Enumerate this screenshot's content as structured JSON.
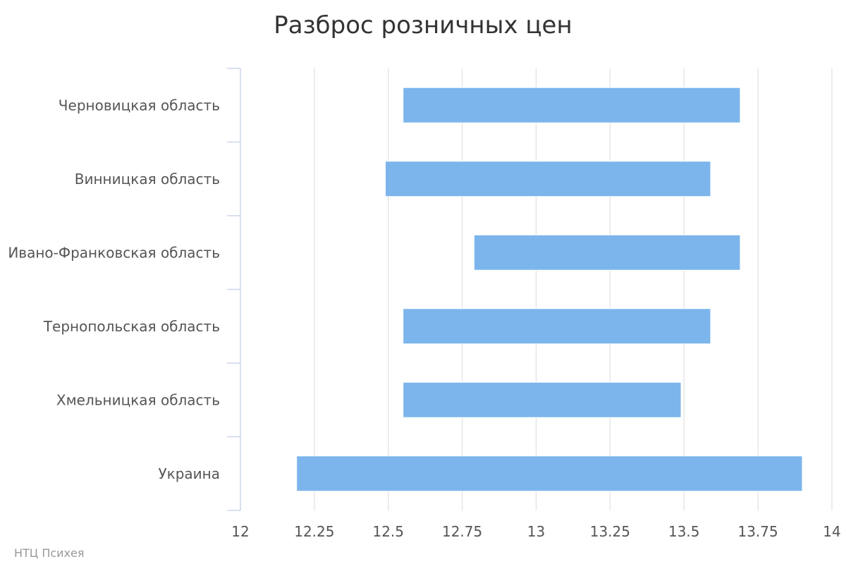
{
  "chart_data": {
    "type": "bar",
    "orientation": "horizontal",
    "floating": true,
    "title": "Разброс розничных цен",
    "categories": [
      "Черновицкая область",
      "Винницкая область",
      "Ивано-Франковская область",
      "Тернопольская область",
      "Хмельницкая область",
      "Украина"
    ],
    "series": [
      {
        "low": [
          12.55,
          12.49,
          12.79,
          12.55,
          12.55,
          12.19
        ],
        "high": [
          13.69,
          13.59,
          13.69,
          13.59,
          13.49,
          13.9
        ]
      }
    ],
    "xlim": [
      12,
      14
    ],
    "xticks": [
      12,
      12.25,
      12.5,
      12.75,
      13,
      13.25,
      13.5,
      13.75,
      14
    ],
    "xtick_labels": [
      "12",
      "12.25",
      "12.5",
      "12.75",
      "13",
      "13.25",
      "13.5",
      "13.75",
      "14"
    ],
    "grid": true,
    "legend": "none",
    "bar_color": "#7cb5ec",
    "credit": "НТЦ Психея"
  }
}
